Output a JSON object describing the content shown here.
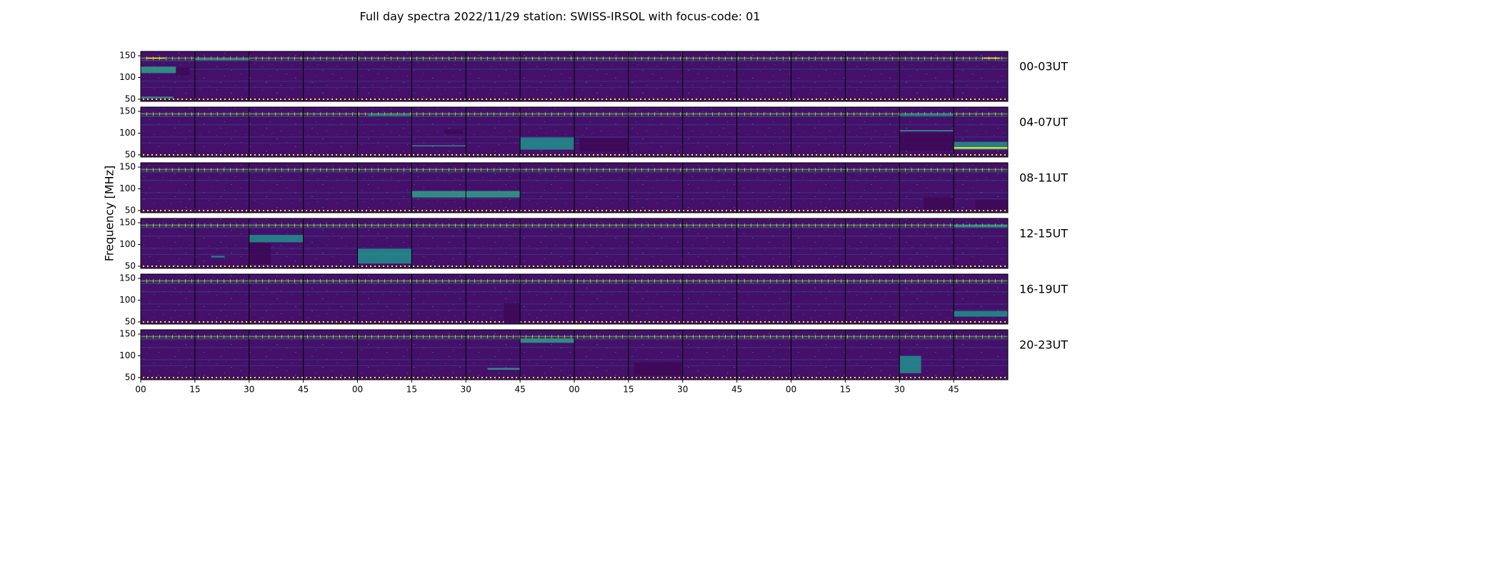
{
  "chart_data": {
    "type": "heatmap",
    "title": "Full day spectra 2022/11/29 station: SWISS-IRSOL with focus-code: 01",
    "ylabel": "Frequency [MHz]",
    "colormap": "viridis",
    "row_labels": [
      "00-03UT",
      "04-07UT",
      "08-11UT",
      "12-15UT",
      "16-19UT",
      "20-23UT"
    ],
    "y_ticks": [
      150,
      100,
      50
    ],
    "ylim": [
      45,
      160
    ],
    "x_tick_labels": [
      "00",
      "15",
      "30",
      "45",
      "00",
      "15",
      "30",
      "45",
      "00",
      "15",
      "30",
      "45",
      "00",
      "15",
      "30",
      "45"
    ],
    "panels_per_row": 16,
    "minutes_per_panel": 15,
    "features": [
      {
        "row": 0,
        "panel": 0,
        "from": 0.0,
        "to": 0.65,
        "fmin": 110,
        "fmax": 125,
        "level": "bright"
      },
      {
        "row": 0,
        "panel": 0,
        "from": 0.65,
        "to": 0.9,
        "fmin": 105,
        "fmax": 123,
        "level": "dark"
      },
      {
        "row": 0,
        "panel": 0,
        "from": 0.0,
        "to": 0.6,
        "fmin": 52,
        "fmax": 56,
        "level": "bright"
      },
      {
        "row": 0,
        "panel": 0,
        "from": 0.1,
        "to": 0.45,
        "fmin": 143,
        "fmax": 146,
        "level": "hot"
      },
      {
        "row": 0,
        "panel": 1,
        "from": 0.0,
        "to": 1.0,
        "fmin": 140,
        "fmax": 143,
        "level": "bright"
      },
      {
        "row": 0,
        "panel": 15,
        "from": 0.55,
        "to": 0.85,
        "fmin": 143,
        "fmax": 146,
        "level": "hot"
      },
      {
        "row": 1,
        "panel": 7,
        "from": 0.0,
        "to": 1.0,
        "fmin": 62,
        "fmax": 90,
        "level": "teal"
      },
      {
        "row": 1,
        "panel": 8,
        "from": 0.1,
        "to": 1.0,
        "fmin": 58,
        "fmax": 88,
        "level": "dark"
      },
      {
        "row": 1,
        "panel": 5,
        "from": 0.6,
        "to": 0.95,
        "fmin": 98,
        "fmax": 108,
        "level": "dark"
      },
      {
        "row": 1,
        "panel": 14,
        "from": 0.0,
        "to": 1.0,
        "fmin": 104,
        "fmax": 107,
        "level": "bright"
      },
      {
        "row": 1,
        "panel": 14,
        "from": 0.0,
        "to": 1.0,
        "fmin": 60,
        "fmax": 100,
        "level": "dark"
      },
      {
        "row": 1,
        "panel": 15,
        "from": 0.0,
        "to": 1.0,
        "fmin": 62,
        "fmax": 80,
        "level": "teal"
      },
      {
        "row": 1,
        "panel": 15,
        "from": 0.0,
        "to": 1.0,
        "fmin": 64,
        "fmax": 68,
        "level": "hot"
      },
      {
        "row": 1,
        "panel": 14,
        "from": 0.0,
        "to": 1.0,
        "fmin": 140,
        "fmax": 144,
        "level": "teal"
      },
      {
        "row": 1,
        "panel": 4,
        "from": 0.2,
        "to": 1.0,
        "fmin": 140,
        "fmax": 143,
        "level": "teal"
      },
      {
        "row": 1,
        "panel": 5,
        "from": 0.0,
        "to": 1.0,
        "fmin": 70,
        "fmax": 72,
        "level": "bright"
      },
      {
        "row": 2,
        "panel": 6,
        "from": 0.0,
        "to": 1.0,
        "fmin": 80,
        "fmax": 95,
        "level": "bright"
      },
      {
        "row": 2,
        "panel": 5,
        "from": 0.0,
        "to": 1.0,
        "fmin": 80,
        "fmax": 95,
        "level": "bright"
      },
      {
        "row": 2,
        "panel": 14,
        "from": 0.45,
        "to": 1.0,
        "fmin": 52,
        "fmax": 80,
        "level": "dark"
      },
      {
        "row": 2,
        "panel": 15,
        "from": 0.4,
        "to": 1.0,
        "fmin": 52,
        "fmax": 75,
        "level": "dark"
      },
      {
        "row": 3,
        "panel": 1,
        "from": 0.3,
        "to": 0.55,
        "fmin": 70,
        "fmax": 74,
        "level": "teal"
      },
      {
        "row": 3,
        "panel": 2,
        "from": 0.0,
        "to": 1.0,
        "fmin": 105,
        "fmax": 122,
        "level": "teal"
      },
      {
        "row": 3,
        "panel": 2,
        "from": 0.0,
        "to": 0.4,
        "fmin": 55,
        "fmax": 104,
        "level": "dark"
      },
      {
        "row": 3,
        "panel": 4,
        "from": 0.0,
        "to": 1.0,
        "fmin": 56,
        "fmax": 90,
        "level": "teal"
      },
      {
        "row": 3,
        "panel": 15,
        "from": 0.0,
        "to": 1.0,
        "fmin": 140,
        "fmax": 145,
        "level": "bright"
      },
      {
        "row": 4,
        "panel": 6,
        "from": 0.7,
        "to": 1.0,
        "fmin": 47,
        "fmax": 92,
        "level": "dark"
      },
      {
        "row": 4,
        "panel": 15,
        "from": 0.0,
        "to": 1.0,
        "fmin": 62,
        "fmax": 75,
        "level": "teal"
      },
      {
        "row": 5,
        "panel": 9,
        "from": 0.1,
        "to": 1.0,
        "fmin": 55,
        "fmax": 85,
        "level": "dark"
      },
      {
        "row": 5,
        "panel": 14,
        "from": 0.0,
        "to": 0.4,
        "fmin": 60,
        "fmax": 100,
        "level": "teal"
      },
      {
        "row": 5,
        "panel": 6,
        "from": 0.4,
        "to": 1.0,
        "fmin": 68,
        "fmax": 72,
        "level": "bright"
      },
      {
        "row": 5,
        "panel": 7,
        "from": 0.0,
        "to": 1.0,
        "fmin": 130,
        "fmax": 140,
        "level": "bright"
      }
    ],
    "grid": false
  }
}
